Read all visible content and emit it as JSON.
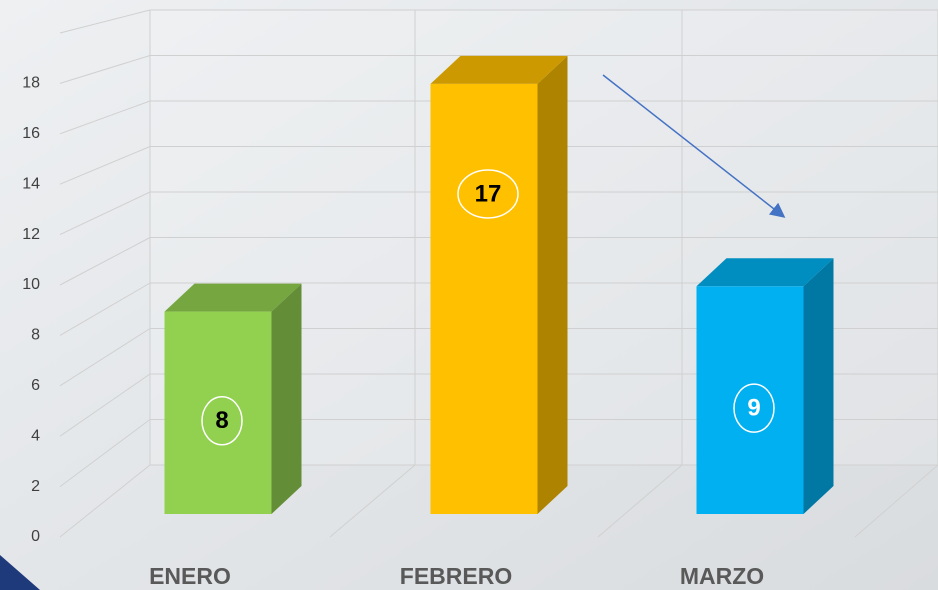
{
  "chart_data": {
    "type": "bar3d",
    "categories": [
      "ENERO",
      "FEBRERO",
      "MARZO"
    ],
    "values": [
      8,
      17,
      9
    ],
    "colors": [
      "#92d050",
      "#ffc000",
      "#00b0f0"
    ],
    "value_label_colors": [
      "#000000",
      "#000000",
      "#ffffff"
    ],
    "ylim": [
      0,
      20
    ],
    "yticks": [
      0,
      2,
      4,
      6,
      8,
      10,
      12,
      14,
      16,
      18
    ],
    "grid": true
  }
}
